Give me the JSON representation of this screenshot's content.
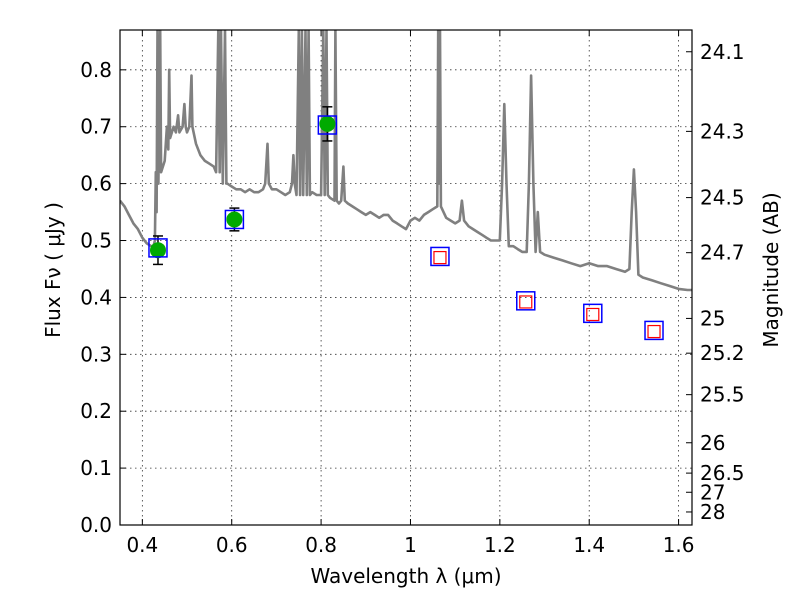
{
  "chart_data": {
    "type": "scatter",
    "xlabel": "Wavelength  λ (μm)",
    "ylabel": "Flux  Fν  ( μJy )",
    "y2label": "Magnitude (AB)",
    "xlim": [
      0.35,
      1.63
    ],
    "ylim": [
      0.0,
      0.87
    ],
    "grid": true,
    "x_ticks": [
      0.4,
      0.6,
      0.8,
      1.0,
      1.2,
      1.4,
      1.6
    ],
    "x_tick_labels": [
      "0.4",
      "0.6",
      "0.8",
      "1",
      "1.2",
      "1.4",
      "1.6"
    ],
    "y_ticks": [
      0.0,
      0.1,
      0.2,
      0.3,
      0.4,
      0.5,
      0.6,
      0.7,
      0.8
    ],
    "y_tick_labels": [
      "0.0",
      "0.1",
      "0.2",
      "0.3",
      "0.4",
      "0.5",
      "0.6",
      "0.7",
      "0.8"
    ],
    "mag_ticks": [
      "24.1",
      "24.3",
      "24.5",
      "24.7",
      "25",
      "25.2",
      "25.5",
      "26",
      "26.5",
      "27",
      "28"
    ],
    "model_spectrum": {
      "color": "#808080",
      "points": [
        [
          0.35,
          0.57
        ],
        [
          0.36,
          0.56
        ],
        [
          0.37,
          0.545
        ],
        [
          0.38,
          0.53
        ],
        [
          0.39,
          0.52
        ],
        [
          0.4,
          0.505
        ],
        [
          0.41,
          0.495
        ],
        [
          0.42,
          0.49
        ],
        [
          0.425,
          0.49
        ],
        [
          0.428,
          0.5
        ],
        [
          0.43,
          0.62
        ],
        [
          0.432,
          0.55
        ],
        [
          0.434,
          0.87
        ],
        [
          0.436,
          0.6
        ],
        [
          0.44,
          0.87
        ],
        [
          0.442,
          0.62
        ],
        [
          0.45,
          0.64
        ],
        [
          0.455,
          0.7
        ],
        [
          0.458,
          0.66
        ],
        [
          0.46,
          0.8
        ],
        [
          0.462,
          0.68
        ],
        [
          0.47,
          0.7
        ],
        [
          0.475,
          0.69
        ],
        [
          0.48,
          0.72
        ],
        [
          0.483,
          0.69
        ],
        [
          0.49,
          0.7
        ],
        [
          0.494,
          0.74
        ],
        [
          0.497,
          0.7
        ],
        [
          0.5,
          0.69
        ],
        [
          0.505,
          0.7
        ],
        [
          0.51,
          0.79
        ],
        [
          0.512,
          0.7
        ],
        [
          0.52,
          0.67
        ],
        [
          0.53,
          0.65
        ],
        [
          0.54,
          0.64
        ],
        [
          0.55,
          0.635
        ],
        [
          0.56,
          0.63
        ],
        [
          0.565,
          0.62
        ],
        [
          0.57,
          0.87
        ],
        [
          0.573,
          0.62
        ],
        [
          0.576,
          0.87
        ],
        [
          0.58,
          0.6
        ],
        [
          0.585,
          0.87
        ],
        [
          0.588,
          0.6
        ],
        [
          0.59,
          0.6
        ],
        [
          0.6,
          0.595
        ],
        [
          0.61,
          0.59
        ],
        [
          0.62,
          0.59
        ],
        [
          0.63,
          0.585
        ],
        [
          0.64,
          0.59
        ],
        [
          0.65,
          0.585
        ],
        [
          0.66,
          0.585
        ],
        [
          0.67,
          0.59
        ],
        [
          0.675,
          0.6
        ],
        [
          0.68,
          0.67
        ],
        [
          0.683,
          0.6
        ],
        [
          0.69,
          0.59
        ],
        [
          0.7,
          0.59
        ],
        [
          0.71,
          0.585
        ],
        [
          0.72,
          0.58
        ],
        [
          0.73,
          0.585
        ],
        [
          0.735,
          0.6
        ],
        [
          0.738,
          0.65
        ],
        [
          0.741,
          0.6
        ],
        [
          0.745,
          0.58
        ],
        [
          0.75,
          0.87
        ],
        [
          0.753,
          0.58
        ],
        [
          0.757,
          0.87
        ],
        [
          0.76,
          0.58
        ],
        [
          0.765,
          0.87
        ],
        [
          0.768,
          0.58
        ],
        [
          0.772,
          0.87
        ],
        [
          0.775,
          0.58
        ],
        [
          0.78,
          0.585
        ],
        [
          0.79,
          0.58
        ],
        [
          0.8,
          0.58
        ],
        [
          0.805,
          0.87
        ],
        [
          0.808,
          0.58
        ],
        [
          0.812,
          0.87
        ],
        [
          0.815,
          0.58
        ],
        [
          0.82,
          0.575
        ],
        [
          0.83,
          0.57
        ],
        [
          0.832,
          0.87
        ],
        [
          0.835,
          0.57
        ],
        [
          0.84,
          0.565
        ],
        [
          0.845,
          0.57
        ],
        [
          0.85,
          0.63
        ],
        [
          0.853,
          0.57
        ],
        [
          0.86,
          0.565
        ],
        [
          0.87,
          0.56
        ],
        [
          0.88,
          0.555
        ],
        [
          0.89,
          0.55
        ],
        [
          0.9,
          0.545
        ],
        [
          0.91,
          0.55
        ],
        [
          0.92,
          0.545
        ],
        [
          0.93,
          0.54
        ],
        [
          0.94,
          0.545
        ],
        [
          0.95,
          0.545
        ],
        [
          0.96,
          0.535
        ],
        [
          0.97,
          0.53
        ],
        [
          0.98,
          0.525
        ],
        [
          0.99,
          0.52
        ],
        [
          1.0,
          0.535
        ],
        [
          1.01,
          0.54
        ],
        [
          1.02,
          0.535
        ],
        [
          1.03,
          0.545
        ],
        [
          1.04,
          0.55
        ],
        [
          1.05,
          0.555
        ],
        [
          1.06,
          0.56
        ],
        [
          1.062,
          0.87
        ],
        [
          1.064,
          0.6
        ],
        [
          1.066,
          0.87
        ],
        [
          1.068,
          0.56
        ],
        [
          1.08,
          0.54
        ],
        [
          1.09,
          0.535
        ],
        [
          1.1,
          0.53
        ],
        [
          1.11,
          0.535
        ],
        [
          1.115,
          0.57
        ],
        [
          1.12,
          0.535
        ],
        [
          1.13,
          0.525
        ],
        [
          1.14,
          0.52
        ],
        [
          1.15,
          0.515
        ],
        [
          1.16,
          0.51
        ],
        [
          1.17,
          0.505
        ],
        [
          1.18,
          0.5
        ],
        [
          1.19,
          0.5
        ],
        [
          1.2,
          0.5
        ],
        [
          1.205,
          0.6
        ],
        [
          1.21,
          0.74
        ],
        [
          1.215,
          0.6
        ],
        [
          1.22,
          0.49
        ],
        [
          1.23,
          0.49
        ],
        [
          1.24,
          0.485
        ],
        [
          1.25,
          0.48
        ],
        [
          1.26,
          0.48
        ],
        [
          1.265,
          0.6
        ],
        [
          1.27,
          0.79
        ],
        [
          1.275,
          0.6
        ],
        [
          1.28,
          0.48
        ],
        [
          1.285,
          0.55
        ],
        [
          1.29,
          0.48
        ],
        [
          1.3,
          0.475
        ],
        [
          1.32,
          0.47
        ],
        [
          1.34,
          0.465
        ],
        [
          1.36,
          0.46
        ],
        [
          1.38,
          0.455
        ],
        [
          1.4,
          0.46
        ],
        [
          1.42,
          0.455
        ],
        [
          1.44,
          0.455
        ],
        [
          1.46,
          0.45
        ],
        [
          1.48,
          0.445
        ],
        [
          1.49,
          0.45
        ],
        [
          1.495,
          0.55
        ],
        [
          1.5,
          0.625
        ],
        [
          1.505,
          0.55
        ],
        [
          1.51,
          0.44
        ],
        [
          1.52,
          0.435
        ],
        [
          1.54,
          0.43
        ],
        [
          1.56,
          0.425
        ],
        [
          1.58,
          0.42
        ],
        [
          1.6,
          0.415
        ],
        [
          1.62,
          0.413
        ],
        [
          1.63,
          0.413
        ]
      ]
    },
    "series": [
      {
        "marker": "filled-circle",
        "color": "#00aa00",
        "points": [
          {
            "x": 0.435,
            "y": 0.483,
            "yerr": 0.025
          },
          {
            "x": 0.606,
            "y": 0.537,
            "yerr": 0.02
          },
          {
            "x": 0.814,
            "y": 0.705,
            "yerr": 0.03
          }
        ]
      },
      {
        "marker": "open-square",
        "color": "#ff0000",
        "points": [
          {
            "x": 1.066,
            "y": 0.47
          },
          {
            "x": 1.258,
            "y": 0.392
          },
          {
            "x": 1.408,
            "y": 0.37
          },
          {
            "x": 1.545,
            "y": 0.34
          }
        ]
      },
      {
        "marker": "blue-box",
        "color": "#0000ff",
        "points": [
          {
            "x": 0.435,
            "y": 0.487
          },
          {
            "x": 0.606,
            "y": 0.537
          },
          {
            "x": 0.814,
            "y": 0.703
          },
          {
            "x": 1.066,
            "y": 0.472
          },
          {
            "x": 1.258,
            "y": 0.394
          },
          {
            "x": 1.408,
            "y": 0.372
          },
          {
            "x": 1.545,
            "y": 0.342
          }
        ]
      }
    ]
  }
}
